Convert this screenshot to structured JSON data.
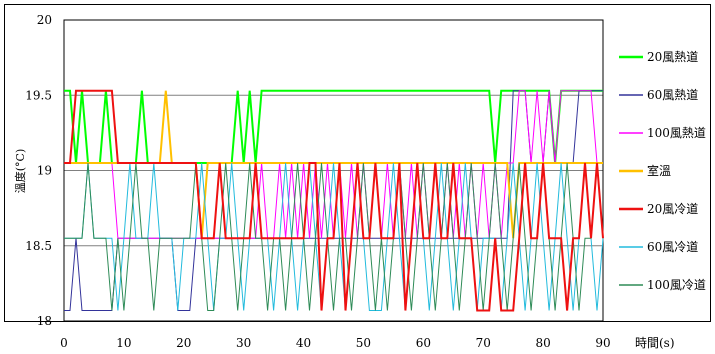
{
  "chart_data": {
    "type": "line",
    "title": "",
    "xlabel": "時間(s)",
    "ylabel": "溫度(°C)",
    "xlim": [
      0,
      90
    ],
    "ylim": [
      18,
      20
    ],
    "xticks": [
      0,
      10,
      20,
      30,
      40,
      50,
      60,
      70,
      80,
      90
    ],
    "xtick_labels": [
      "0",
      "10",
      "20",
      "30",
      "40",
      "50",
      "60",
      "70",
      "80",
      "90"
    ],
    "yticks": [
      18,
      18.5,
      19,
      19.5,
      20
    ],
    "ytick_labels": [
      "18",
      "18.5",
      "19",
      "19.5",
      "20"
    ],
    "grid": "horizontal",
    "legend_position": "right",
    "series": [
      {
        "name": "20風熱道",
        "color": "#00ff00",
        "width": 2,
        "x": [
          0,
          1,
          2,
          3,
          4,
          5,
          6,
          7,
          8,
          9,
          10,
          11,
          12,
          13,
          14,
          15,
          16,
          17,
          18,
          19,
          20,
          21,
          22,
          23,
          24,
          25,
          26,
          27,
          28,
          29,
          30,
          31,
          32,
          33,
          40,
          50,
          60,
          70,
          71,
          72,
          73,
          74,
          75,
          76,
          77,
          78,
          79,
          80,
          81,
          82,
          83,
          84,
          85,
          86,
          87,
          88,
          89,
          90
        ],
        "y": [
          19.53,
          19.53,
          19.05,
          19.53,
          19.05,
          19.05,
          19.05,
          19.53,
          19.05,
          19.05,
          19.05,
          19.05,
          19.05,
          19.53,
          19.05,
          19.05,
          19.05,
          19.05,
          19.05,
          19.05,
          19.05,
          19.05,
          19.05,
          19.05,
          19.05,
          19.05,
          19.05,
          19.05,
          19.05,
          19.53,
          19.05,
          19.53,
          19.05,
          19.53,
          19.53,
          19.53,
          19.53,
          19.53,
          19.53,
          19.05,
          19.53,
          19.53,
          19.53,
          19.53,
          19.53,
          19.53,
          19.53,
          19.53,
          19.53,
          19.05,
          19.53,
          19.53,
          19.53,
          19.53,
          19.53,
          19.53,
          19.53,
          19.53
        ]
      },
      {
        "name": "60風熱道",
        "color": "#33339a",
        "width": 1,
        "x": [
          0,
          1,
          2,
          3,
          4,
          5,
          6,
          7,
          8,
          9,
          10,
          11,
          12,
          13,
          14,
          15,
          16,
          17,
          18,
          19,
          20,
          21,
          22,
          23,
          24,
          25,
          26,
          27,
          28,
          29,
          30,
          40,
          50,
          60,
          70,
          71,
          72,
          73,
          74,
          75,
          76,
          77,
          78,
          79,
          80,
          81,
          82,
          83,
          84,
          85,
          86,
          87,
          88,
          89,
          90
        ],
        "y": [
          18.07,
          18.07,
          18.55,
          18.07,
          18.07,
          18.07,
          18.07,
          18.07,
          18.07,
          18.55,
          18.55,
          18.55,
          18.55,
          18.55,
          18.55,
          18.55,
          18.55,
          18.55,
          18.55,
          18.07,
          18.07,
          18.07,
          18.55,
          18.55,
          18.55,
          18.55,
          18.55,
          18.55,
          18.55,
          18.55,
          18.55,
          18.55,
          18.55,
          18.55,
          18.55,
          18.55,
          18.55,
          18.55,
          18.55,
          19.53,
          19.53,
          19.53,
          19.05,
          19.05,
          19.05,
          19.53,
          19.05,
          19.05,
          19.05,
          19.05,
          19.53,
          19.53,
          19.53,
          19.53,
          19.53
        ]
      },
      {
        "name": "100風熱道",
        "color": "#ff00ff",
        "width": 1,
        "x": [
          0,
          8,
          9,
          10,
          20,
          30,
          31,
          32,
          33,
          34,
          35,
          36,
          37,
          38,
          39,
          40,
          41,
          42,
          43,
          44,
          45,
          46,
          47,
          48,
          49,
          50,
          51,
          52,
          53,
          54,
          55,
          56,
          57,
          58,
          59,
          60,
          61,
          62,
          63,
          64,
          65,
          66,
          67,
          68,
          69,
          70,
          71,
          72,
          73,
          74,
          75,
          76,
          77,
          78,
          79,
          80,
          81,
          82,
          83,
          84,
          85,
          86,
          87,
          88,
          89,
          90
        ],
        "y": [
          19.05,
          19.05,
          18.55,
          18.55,
          18.55,
          18.55,
          18.55,
          18.55,
          19.05,
          18.55,
          18.55,
          19.05,
          18.55,
          19.05,
          18.55,
          19.05,
          18.55,
          19.05,
          18.55,
          19.05,
          18.55,
          19.05,
          18.55,
          19.05,
          18.55,
          19.05,
          18.55,
          19.05,
          18.55,
          19.05,
          18.55,
          19.05,
          18.55,
          19.05,
          18.55,
          19.05,
          18.55,
          19.05,
          18.55,
          19.05,
          18.55,
          19.05,
          18.55,
          19.05,
          18.55,
          19.05,
          18.55,
          19.05,
          18.55,
          19.05,
          19.05,
          19.53,
          19.53,
          19.05,
          19.53,
          19.05,
          19.53,
          19.05,
          19.53,
          19.53,
          19.53,
          19.53,
          19.53,
          19.53,
          19.05,
          19.05
        ]
      },
      {
        "name": "室溫",
        "color": "#ffc000",
        "width": 2,
        "x": [
          0,
          10,
          15,
          16,
          17,
          18,
          19,
          20,
          21,
          22,
          23,
          24,
          30,
          40,
          50,
          60,
          70,
          71,
          72,
          73,
          74,
          75,
          76,
          77,
          78,
          79,
          80,
          81,
          82,
          83,
          84,
          85,
          86,
          87,
          88,
          89,
          90
        ],
        "y": [
          19.05,
          19.05,
          19.05,
          19.05,
          19.53,
          19.05,
          19.05,
          19.05,
          19.05,
          19.05,
          18.55,
          19.05,
          19.05,
          19.05,
          19.05,
          19.05,
          19.05,
          19.05,
          19.05,
          19.05,
          19.05,
          18.55,
          19.05,
          19.05,
          19.05,
          19.05,
          19.05,
          19.05,
          19.05,
          19.05,
          19.05,
          19.05,
          19.05,
          19.05,
          19.05,
          19.05,
          19.05
        ]
      },
      {
        "name": "20風冷道",
        "color": "#ee1111",
        "width": 2,
        "x": [
          0,
          1,
          2,
          3,
          4,
          5,
          6,
          7,
          8,
          9,
          10,
          15,
          20,
          22,
          23,
          24,
          25,
          26,
          27,
          28,
          29,
          30,
          31,
          32,
          33,
          34,
          35,
          36,
          37,
          38,
          39,
          40,
          41,
          42,
          43,
          44,
          45,
          46,
          47,
          48,
          49,
          50,
          51,
          52,
          53,
          54,
          55,
          56,
          57,
          58,
          59,
          60,
          61,
          62,
          63,
          64,
          65,
          66,
          67,
          68,
          69,
          70,
          71,
          72,
          73,
          74,
          75,
          76,
          77,
          78,
          79,
          80,
          81,
          82,
          83,
          84,
          85,
          86,
          87,
          88,
          89,
          90
        ],
        "y": [
          19.05,
          19.05,
          19.53,
          19.53,
          19.53,
          19.53,
          19.53,
          19.53,
          19.53,
          19.05,
          19.05,
          19.05,
          19.05,
          19.05,
          18.55,
          18.55,
          18.55,
          19.05,
          18.55,
          18.55,
          18.55,
          18.55,
          18.55,
          19.05,
          18.55,
          18.55,
          18.55,
          18.55,
          18.55,
          18.55,
          18.55,
          18.55,
          19.05,
          19.05,
          18.07,
          18.55,
          18.55,
          19.05,
          18.07,
          18.55,
          19.05,
          18.55,
          18.55,
          19.05,
          18.55,
          18.55,
          18.55,
          19.05,
          18.07,
          18.55,
          19.05,
          18.55,
          18.55,
          19.05,
          18.55,
          18.55,
          19.05,
          18.55,
          18.55,
          18.55,
          18.07,
          18.07,
          18.07,
          18.55,
          18.07,
          18.07,
          18.07,
          18.55,
          19.05,
          18.55,
          18.55,
          19.05,
          18.55,
          18.55,
          18.55,
          18.07,
          18.55,
          18.55,
          19.05,
          18.55,
          19.05,
          18.55
        ]
      },
      {
        "name": "60風冷道",
        "color": "#22bbdd",
        "width": 1,
        "x": [
          0,
          1,
          2,
          3,
          4,
          5,
          6,
          7,
          8,
          9,
          10,
          11,
          12,
          13,
          14,
          15,
          16,
          17,
          18,
          19,
          20,
          21,
          22,
          23,
          24,
          25,
          26,
          27,
          28,
          29,
          30,
          31,
          32,
          33,
          34,
          35,
          36,
          37,
          38,
          39,
          40,
          41,
          42,
          43,
          44,
          45,
          46,
          47,
          48,
          49,
          50,
          51,
          52,
          53,
          54,
          55,
          56,
          57,
          58,
          59,
          60,
          61,
          62,
          63,
          64,
          65,
          66,
          67,
          68,
          69,
          70,
          71,
          72,
          73,
          74,
          75,
          76,
          77,
          78,
          79,
          80,
          81,
          82,
          83,
          84,
          85,
          86,
          87,
          88,
          89,
          90
        ],
        "y": [
          18.55,
          18.55,
          18.55,
          18.55,
          19.05,
          18.55,
          18.55,
          18.55,
          18.55,
          18.07,
          18.55,
          19.05,
          18.55,
          18.55,
          18.55,
          19.05,
          18.55,
          18.55,
          18.55,
          18.07,
          18.55,
          18.55,
          18.55,
          19.05,
          18.55,
          18.07,
          18.55,
          18.55,
          19.05,
          18.55,
          18.07,
          18.55,
          19.05,
          18.55,
          18.55,
          18.07,
          18.55,
          19.05,
          18.55,
          18.07,
          18.55,
          19.05,
          18.55,
          18.07,
          18.55,
          19.05,
          18.55,
          18.07,
          18.55,
          19.05,
          18.55,
          18.07,
          18.07,
          18.07,
          18.55,
          19.05,
          18.55,
          18.07,
          18.55,
          19.05,
          18.55,
          18.07,
          18.55,
          19.05,
          18.55,
          18.07,
          18.55,
          19.05,
          18.55,
          18.07,
          18.55,
          18.55,
          18.55,
          18.07,
          18.55,
          19.05,
          18.55,
          18.07,
          18.55,
          19.05,
          18.55,
          18.07,
          18.55,
          19.05,
          18.55,
          18.07,
          18.55,
          19.05,
          18.55,
          18.07,
          18.55
        ]
      },
      {
        "name": "100風冷道",
        "color": "#2e8b57",
        "width": 1,
        "x": [
          0,
          1,
          2,
          3,
          4,
          5,
          6,
          7,
          8,
          9,
          10,
          11,
          12,
          13,
          14,
          15,
          16,
          17,
          18,
          19,
          20,
          21,
          22,
          23,
          24,
          25,
          26,
          27,
          28,
          29,
          30,
          31,
          32,
          33,
          34,
          35,
          36,
          37,
          38,
          39,
          40,
          41,
          42,
          43,
          44,
          45,
          46,
          47,
          48,
          49,
          50,
          51,
          52,
          53,
          54,
          55,
          56,
          57,
          58,
          59,
          60,
          61,
          62,
          63,
          64,
          65,
          66,
          67,
          68,
          69,
          70,
          71,
          72,
          73,
          74,
          75,
          76,
          77,
          78,
          79,
          80,
          81,
          82,
          83,
          84,
          85,
          86,
          87,
          88,
          89,
          90
        ],
        "y": [
          18.55,
          18.55,
          18.55,
          18.55,
          19.05,
          18.55,
          18.55,
          18.55,
          18.07,
          18.55,
          18.07,
          18.55,
          19.05,
          18.55,
          18.55,
          18.07,
          18.55,
          18.55,
          18.55,
          18.55,
          18.55,
          18.55,
          19.05,
          18.55,
          18.07,
          18.07,
          18.55,
          19.05,
          18.55,
          18.07,
          18.55,
          19.05,
          18.55,
          18.55,
          18.07,
          18.55,
          18.55,
          18.07,
          18.55,
          19.05,
          18.55,
          18.07,
          18.55,
          19.05,
          18.55,
          18.07,
          18.55,
          18.55,
          18.07,
          18.55,
          19.05,
          18.55,
          18.07,
          18.55,
          18.07,
          18.55,
          19.05,
          18.55,
          18.07,
          18.55,
          19.05,
          18.55,
          18.07,
          18.55,
          19.05,
          18.55,
          18.07,
          18.55,
          19.05,
          18.55,
          18.07,
          18.55,
          19.05,
          18.55,
          18.07,
          18.55,
          19.05,
          18.55,
          18.07,
          18.55,
          19.05,
          18.55,
          18.07,
          18.55,
          19.05,
          18.55,
          18.07,
          18.55,
          18.55,
          19.05,
          18.55
        ]
      }
    ]
  }
}
